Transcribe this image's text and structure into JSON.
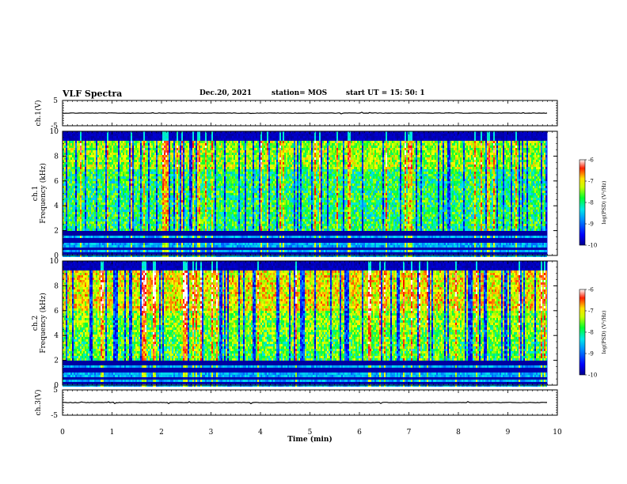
{
  "header": {
    "title": "VLF Spectra",
    "date": "Dec.20, 2021",
    "station": "station= MOS",
    "start": "start  UT =   15: 50: 1"
  },
  "chart_data": [
    {
      "id": "ch1-waveform",
      "type": "line",
      "ylabel": "ch.1(V)",
      "ylim": [
        -5,
        5
      ],
      "yticks": [
        "5",
        "-5"
      ],
      "xlim": [
        0,
        10
      ],
      "trace_level": 0
    },
    {
      "id": "ch1-spectrogram",
      "type": "heatmap",
      "ylabel": "ch.1\nFrequency (kHz)",
      "ylabel_line1": "ch.1",
      "ylabel_line2": "Frequency (kHz)",
      "ylim": [
        0,
        10
      ],
      "yticks": [
        "0",
        "2",
        "4",
        "6",
        "8",
        "10"
      ],
      "xlim": [
        0,
        10
      ],
      "data_end_min": 9.8,
      "colorbar": {
        "label": "log(PSD) (V²/Hz)",
        "range": [
          -10,
          -6
        ],
        "ticks": [
          "-6",
          "-7",
          "-8",
          "-9",
          "-10"
        ]
      }
    },
    {
      "id": "ch2-spectrogram",
      "type": "heatmap",
      "ylabel_line1": "ch.2",
      "ylabel_line2": "Frequency (kHz)",
      "ylim": [
        0,
        10
      ],
      "yticks": [
        "0",
        "2",
        "4",
        "6",
        "8",
        "10"
      ],
      "xlim": [
        0,
        10
      ],
      "data_end_min": 9.8,
      "colorbar": {
        "label": "log(PSD) (V²/Hz)",
        "range": [
          -10,
          -6
        ],
        "ticks": [
          "-6",
          "-7",
          "-8",
          "-9",
          "-10"
        ]
      }
    },
    {
      "id": "ch3-waveform",
      "type": "line",
      "ylabel": "ch.3(V)",
      "ylim": [
        -5,
        5
      ],
      "yticks": [
        "5",
        "-5"
      ],
      "xlim": [
        0,
        10
      ],
      "trace_level": 0
    }
  ],
  "xaxis": {
    "label": "Time  (min)",
    "ticks": [
      "0",
      "1",
      "2",
      "3",
      "4",
      "5",
      "6",
      "7",
      "8",
      "9",
      "10"
    ]
  },
  "colors": {
    "colormap": [
      "#00008c",
      "#0000ff",
      "#0090ff",
      "#00e8e8",
      "#00ff30",
      "#a0ff00",
      "#ffff00",
      "#ff8000",
      "#ff0000",
      "#ffffff"
    ]
  }
}
